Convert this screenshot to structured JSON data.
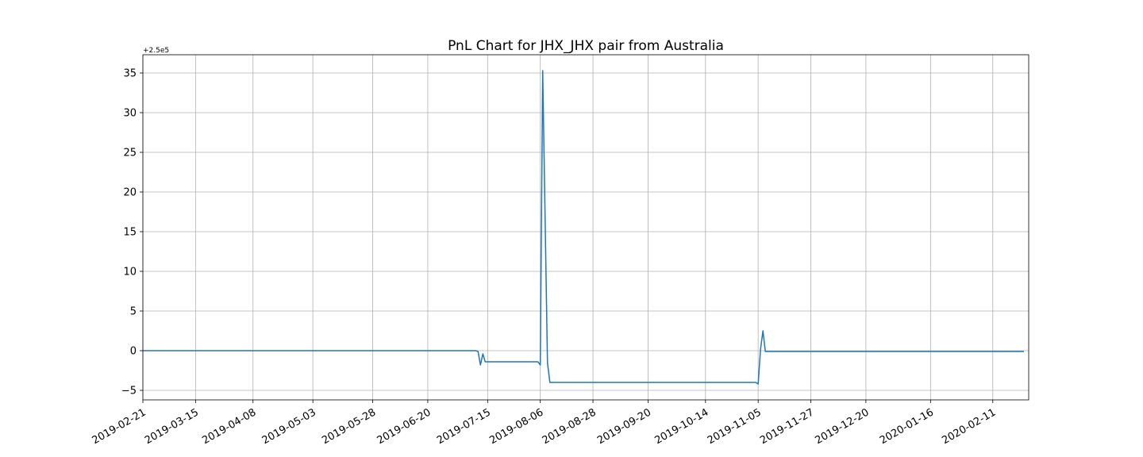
{
  "chart_data": {
    "type": "line",
    "title": "PnL Chart for JHX_JHX pair from Australia",
    "xlabel": "",
    "ylabel": "",
    "y_offset_label": "+2.5e5",
    "y_offset": 250000,
    "xlim": [
      "2019-02-21",
      "2020-02-26"
    ],
    "ylim": [
      -6.2,
      37.3
    ],
    "grid": true,
    "line_color": "#1f77b4",
    "x_ticks": [
      "2019-02-21",
      "2019-03-15",
      "2019-04-08",
      "2019-05-03",
      "2019-05-28",
      "2019-06-20",
      "2019-07-15",
      "2019-08-06",
      "2019-08-28",
      "2019-09-20",
      "2019-10-14",
      "2019-11-05",
      "2019-11-27",
      "2019-12-20",
      "2020-01-16",
      "2020-02-11"
    ],
    "y_ticks": [
      -5,
      0,
      5,
      10,
      15,
      20,
      25,
      30,
      35
    ],
    "y_tick_labels": [
      "−5",
      "0",
      "5",
      "10",
      "15",
      "20",
      "25",
      "30",
      "35"
    ],
    "series": [
      {
        "points": [
          {
            "x": "2019-02-21",
            "y": 0.0
          },
          {
            "x": "2019-07-10",
            "y": 0.0
          },
          {
            "x": "2019-07-11",
            "y": -0.1
          },
          {
            "x": "2019-07-12",
            "y": -1.8
          },
          {
            "x": "2019-07-13",
            "y": -0.4
          },
          {
            "x": "2019-07-14",
            "y": -1.4
          },
          {
            "x": "2019-08-05",
            "y": -1.4
          },
          {
            "x": "2019-08-06",
            "y": -1.8
          },
          {
            "x": "2019-08-07",
            "y": 35.3
          },
          {
            "x": "2019-08-09",
            "y": -1.5
          },
          {
            "x": "2019-08-10",
            "y": -4.0
          },
          {
            "x": "2019-11-04",
            "y": -4.0
          },
          {
            "x": "2019-11-05",
            "y": -4.2
          },
          {
            "x": "2019-11-06",
            "y": 0.2
          },
          {
            "x": "2019-11-07",
            "y": 2.5
          },
          {
            "x": "2019-11-08",
            "y": -0.1
          },
          {
            "x": "2020-02-24",
            "y": -0.1
          }
        ]
      }
    ]
  }
}
